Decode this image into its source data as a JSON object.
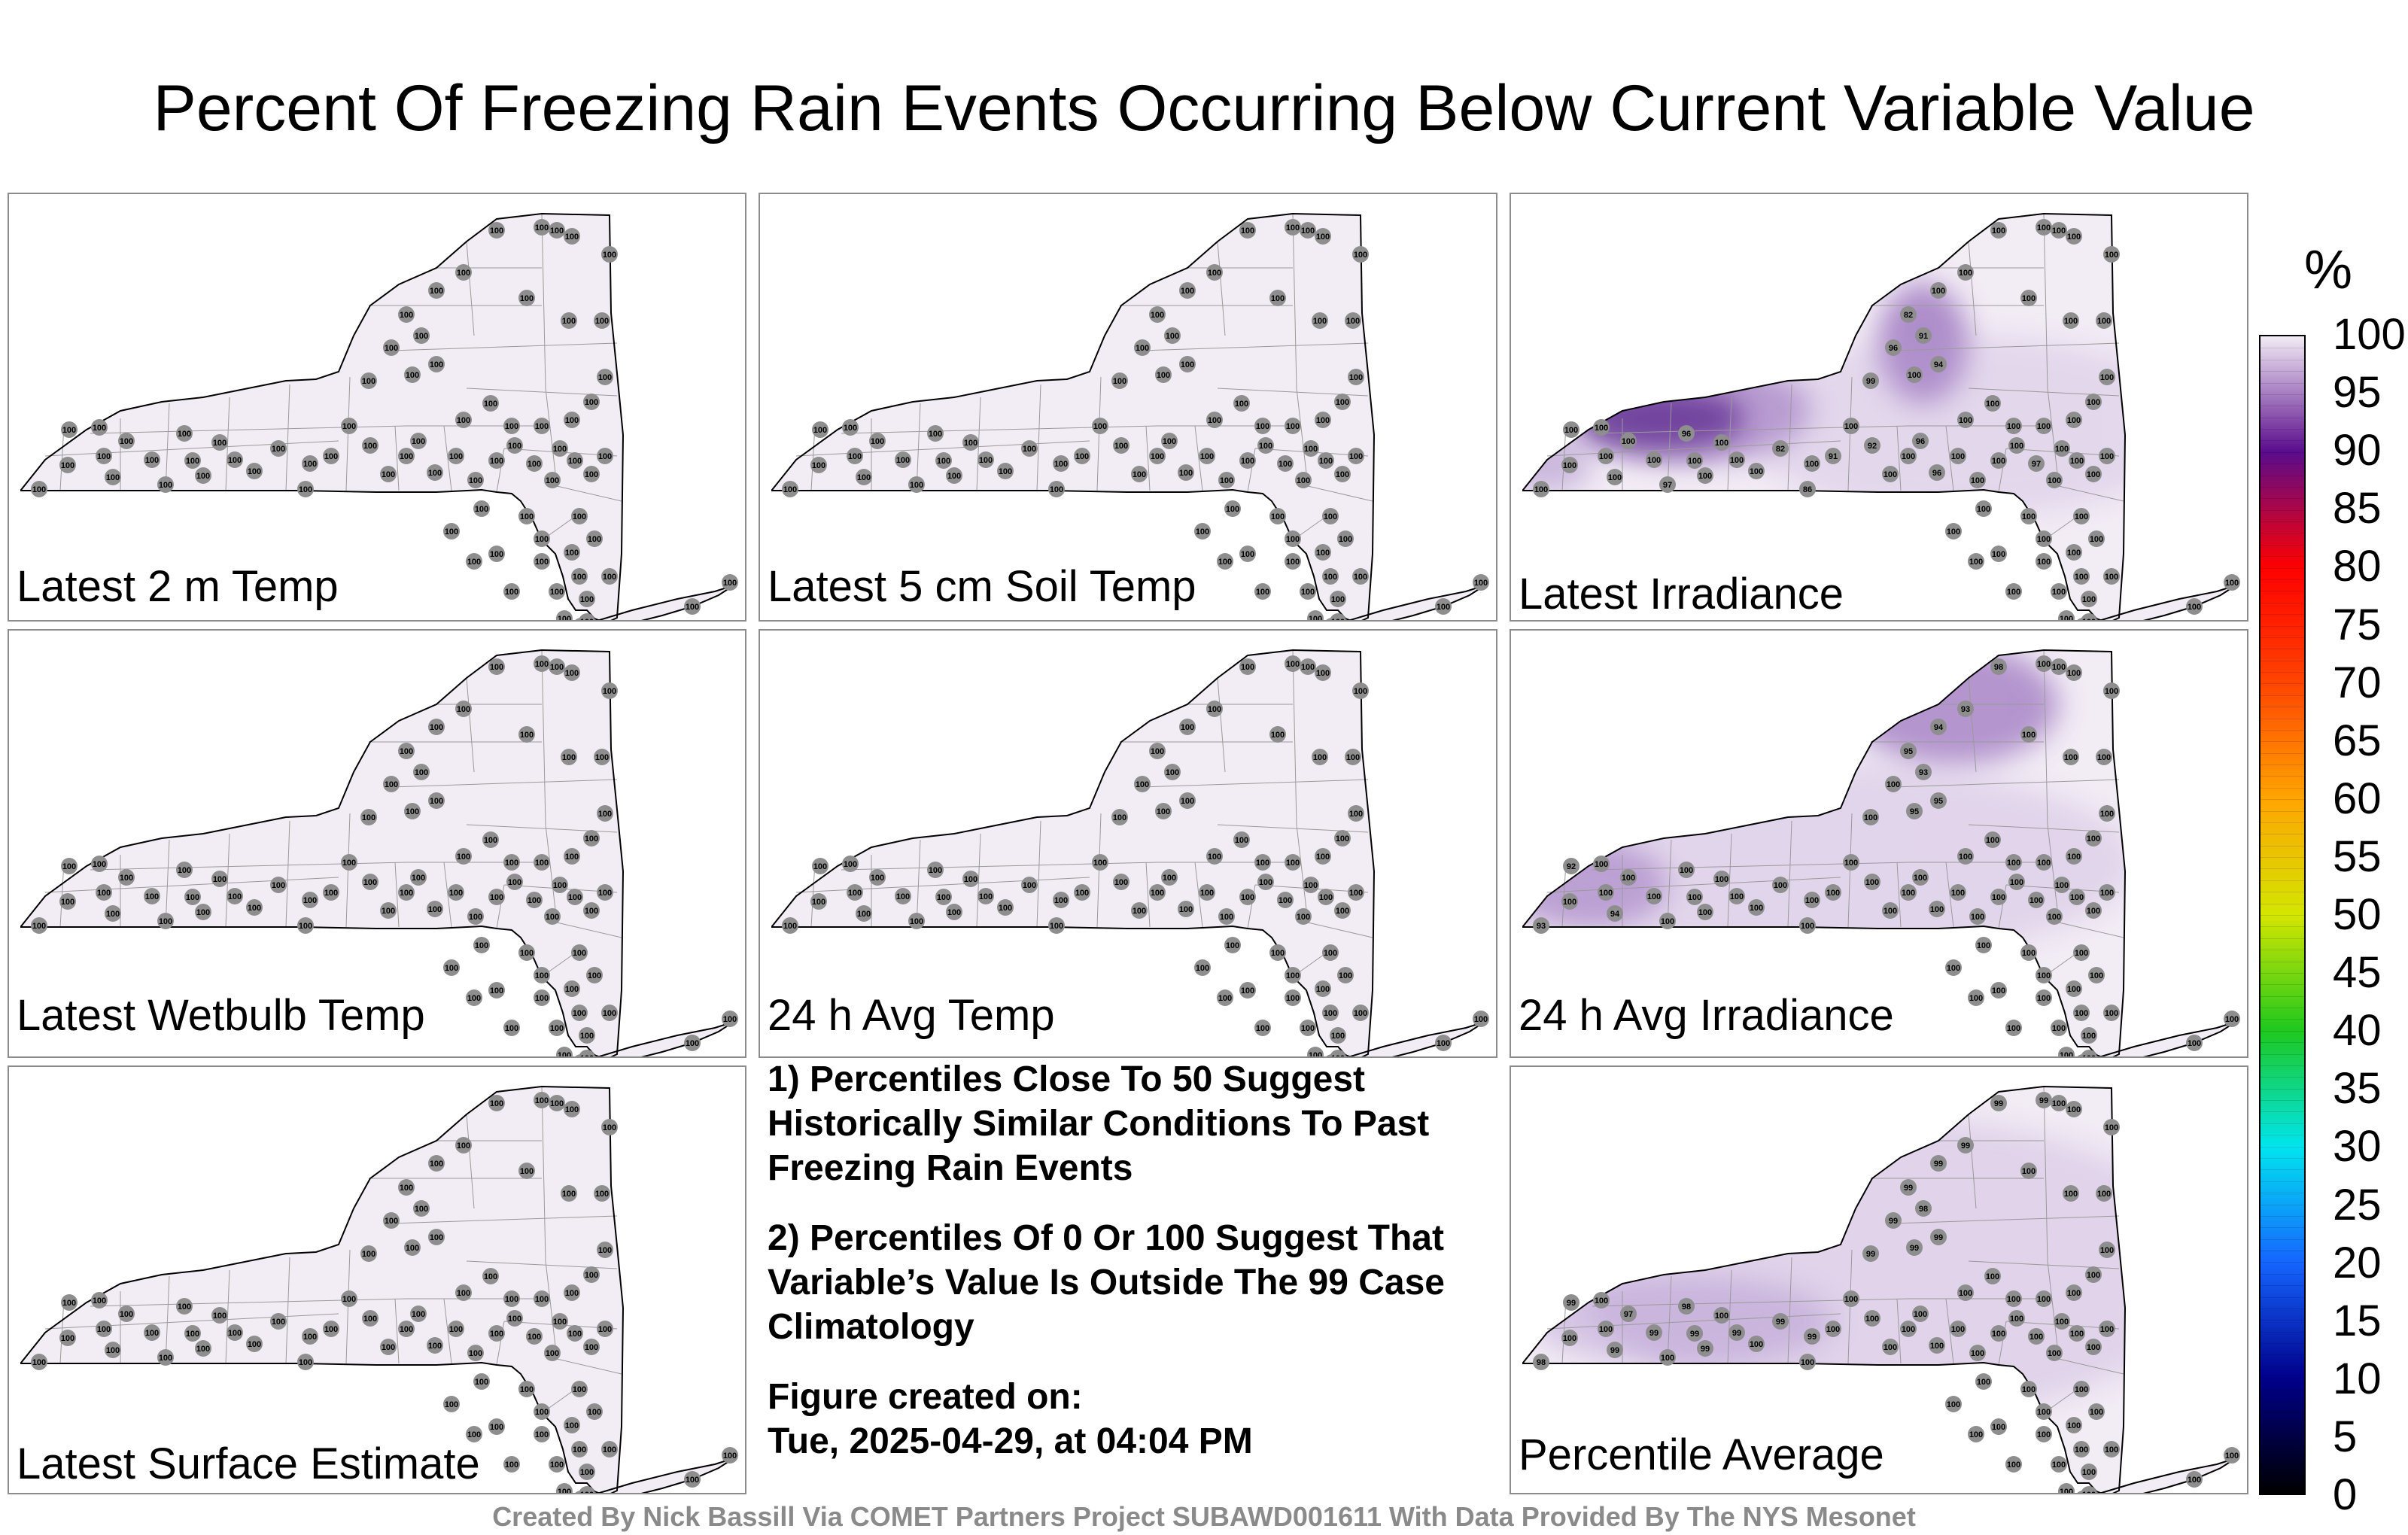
{
  "title": "Percent Of Freezing Rain Events Occurring Below Current Variable Value",
  "panels": [
    {
      "label": "Latest 2 m Temp",
      "shading": "none",
      "values": {}
    },
    {
      "label": "Latest 5 cm Soil Temp",
      "shading": "none",
      "values": {}
    },
    {
      "label": "Latest Irradiance",
      "shading": "irradiance",
      "values": {
        "8": 97,
        "9": 96,
        "15": 82,
        "16": 100,
        "17": 86,
        "18": 91,
        "20": 92,
        "23": 96,
        "24": 96,
        "29": 97,
        "40": 99,
        "41": 96,
        "43": 94,
        "44": 91,
        "45": 82,
        "46": 100
      }
    },
    {
      "label": "Latest Wetbulb Temp",
      "shading": "none",
      "values": {}
    },
    {
      "label": "24 h Avg Temp",
      "shading": "none",
      "values": {}
    },
    {
      "label": "24 h Avg Irradiance",
      "shading": "avgirr",
      "values": {
        "0": 93,
        "2": 92,
        "5": 94,
        "42": 95,
        "43": 95,
        "44": 93,
        "45": 95,
        "46": 94,
        "47": 93,
        "48": 98
      }
    },
    {
      "label": "Latest Surface Estimate",
      "shading": "none",
      "values": {}
    },
    {
      "label": "Percentile Average",
      "shading": "average",
      "values": {
        "0": 98,
        "2": 99,
        "5": 99,
        "6": 97,
        "7": 99,
        "9": 98,
        "10": 99,
        "11": 99,
        "13": 99,
        "15": 99,
        "16": 99,
        "40": 99,
        "41": 99,
        "42": 99,
        "43": 99,
        "44": 98,
        "45": 99,
        "46": 99,
        "47": 99,
        "48": 99,
        "49": 99
      }
    }
  ],
  "notes": [
    "1) Percentiles Close To 50 Suggest Historically Similar Conditions To Past Freezing Rain Events",
    "2) Percentiles Of 0 Or 100 Suggest That Variable’s Value Is Outside The 99 Case Climatology"
  ],
  "figure_created_label": "Figure created on:",
  "figure_created_date": "Tue, 2025-04-29, at 04:04 PM",
  "colorbar": {
    "unit": "%",
    "ticks": [
      "100",
      "95",
      "90",
      "85",
      "80",
      "75",
      "70",
      "65",
      "60",
      "55",
      "50",
      "45",
      "40",
      "35",
      "30",
      "25",
      "20",
      "15",
      "10",
      "5",
      "0"
    ],
    "colors": {
      "0": "#000000",
      "10": "#00008b",
      "20": "#1565ff",
      "30": "#00e5ee",
      "40": "#1ec81e",
      "50": "#d4e600",
      "60": "#ffa500",
      "70": "#ff4500",
      "80": "#ff0000",
      "90": "#5a0c8c",
      "100": "#f2ecf5"
    }
  },
  "default_station_value": "100",
  "footer": "Created By Nick Bassill Via COMET Partners Project SUBAWD001611 With Data Provided By The NYS Mesonet"
}
